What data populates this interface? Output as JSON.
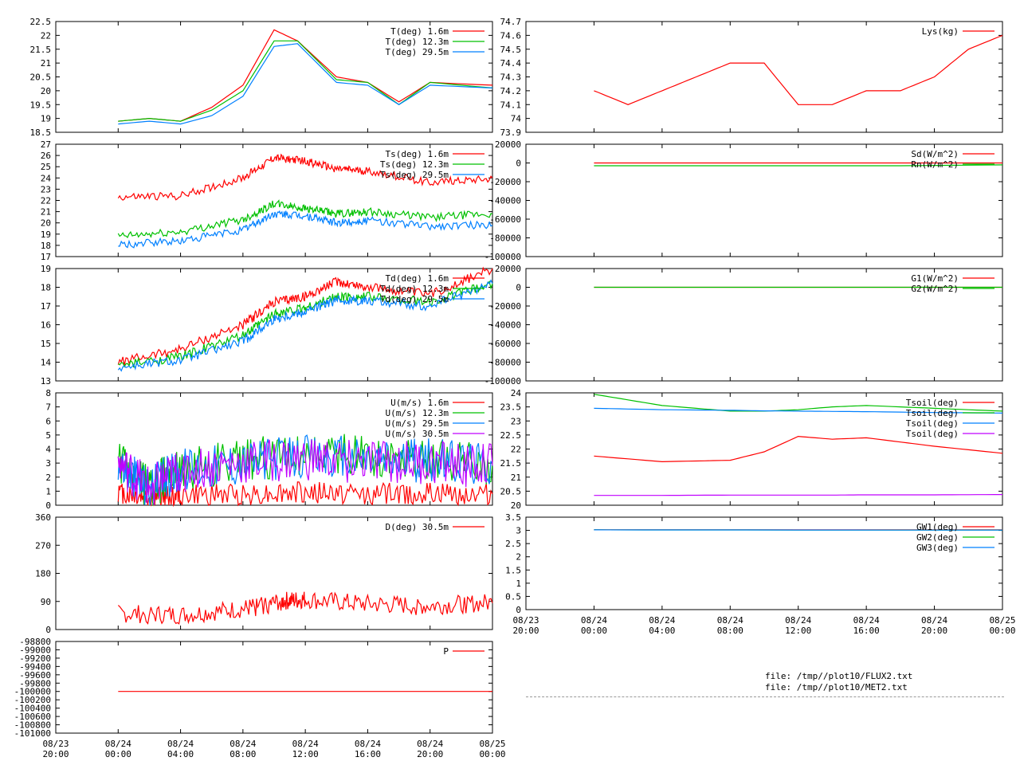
{
  "footer": {
    "file1": "file: /tmp//plot10/FLUX2.txt",
    "file2": "file: /tmp//plot10/MET2.txt"
  },
  "chart_data": [
    {
      "id": "T",
      "type": "line",
      "ylim": [
        18.5,
        22.5
      ],
      "yticks": [
        "22.5",
        "22",
        "21.5",
        "21",
        "20.5",
        "20",
        "19.5",
        "19",
        "18.5"
      ],
      "x": [
        "08/24 00:00",
        "08/24 02:00",
        "08/24 04:00",
        "08/24 06:00",
        "08/24 08:00",
        "08/24 10:00",
        "08/24 11:30",
        "08/24 14:00",
        "08/24 16:00",
        "08/24 18:00",
        "08/24 20:00",
        "08/25 00:00"
      ],
      "legend_placement": "top-right",
      "series": [
        {
          "name": "T(deg)  1.6m",
          "color": "#ff0000",
          "values": [
            18.9,
            19.0,
            18.9,
            19.4,
            20.2,
            22.2,
            21.8,
            20.5,
            20.3,
            19.6,
            20.3,
            20.2
          ]
        },
        {
          "name": "T(deg) 12.3m",
          "color": "#00c000",
          "values": [
            18.9,
            19.0,
            18.9,
            19.3,
            20.0,
            21.8,
            21.8,
            20.4,
            20.3,
            19.5,
            20.3,
            20.1
          ]
        },
        {
          "name": "T(deg) 29.5m",
          "color": "#0080ff",
          "values": [
            18.8,
            18.9,
            18.8,
            19.1,
            19.8,
            21.6,
            21.7,
            20.3,
            20.2,
            19.5,
            20.2,
            20.1
          ]
        }
      ]
    },
    {
      "id": "Ts",
      "type": "line",
      "ylim": [
        17,
        27
      ],
      "yticks": [
        "27",
        "26",
        "25",
        "24",
        "23",
        "22",
        "21",
        "20",
        "19",
        "18",
        "17"
      ],
      "x": [
        "08/24 00:00",
        "08/24 04:00",
        "08/24 08:00",
        "08/24 10:00",
        "08/24 12:00",
        "08/24 14:00",
        "08/24 16:00",
        "08/24 20:00",
        "08/25 00:00"
      ],
      "legend_placement": "top-right",
      "series": [
        {
          "name": "Ts(deg)  1.6m",
          "color": "#ff0000",
          "values": [
            22.3,
            22.4,
            24.0,
            25.8,
            25.5,
            24.8,
            24.6,
            23.6,
            24.0
          ]
        },
        {
          "name": "Ts(deg) 12.3m",
          "color": "#00c000",
          "values": [
            18.8,
            19.2,
            20.3,
            21.7,
            21.3,
            20.8,
            21.0,
            20.5,
            20.8
          ]
        },
        {
          "name": "Ts(deg) 29.5m",
          "color": "#0080ff",
          "values": [
            18.0,
            18.4,
            19.4,
            20.8,
            20.6,
            20.0,
            20.2,
            19.7,
            19.8
          ]
        }
      ]
    },
    {
      "id": "Td",
      "type": "line",
      "ylim": [
        13,
        19
      ],
      "yticks": [
        "19",
        "18",
        "17",
        "16",
        "15",
        "14",
        "13"
      ],
      "x": [
        "08/24 00:00",
        "08/24 04:00",
        "08/24 08:00",
        "08/24 10:00",
        "08/24 12:00",
        "08/24 14:00",
        "08/24 16:00",
        "08/24 20:00",
        "08/25 00:00"
      ],
      "legend_placement": "top-right",
      "series": [
        {
          "name": "Td(deg)  1.6m",
          "color": "#ff0000",
          "values": [
            14.0,
            14.7,
            16.0,
            17.2,
            17.5,
            18.3,
            18.0,
            17.6,
            19.0
          ]
        },
        {
          "name": "Td(deg) 12.3m",
          "color": "#00c000",
          "values": [
            13.8,
            14.3,
            15.4,
            16.6,
            16.9,
            17.5,
            17.5,
            17.2,
            18.2
          ]
        },
        {
          "name": "Td(deg) 29.5m",
          "color": "#0080ff",
          "values": [
            13.7,
            14.1,
            15.1,
            16.3,
            16.7,
            17.3,
            17.3,
            17.0,
            18.2
          ]
        }
      ]
    },
    {
      "id": "U",
      "type": "line",
      "ylim": [
        0,
        8
      ],
      "yticks": [
        "8",
        "7",
        "6",
        "5",
        "4",
        "3",
        "2",
        "1",
        "0"
      ],
      "x": [
        "08/24 00:00",
        "08/24 02:00",
        "08/24 04:00",
        "08/24 08:00",
        "08/24 12:00",
        "08/24 16:00",
        "08/24 20:00",
        "08/25 00:00"
      ],
      "legend_placement": "top-right",
      "series": [
        {
          "name": "U(m/s)  1.6m",
          "color": "#ff0000",
          "values": [
            0.9,
            0.5,
            0.7,
            0.8,
            0.9,
            0.8,
            0.8,
            0.8
          ]
        },
        {
          "name": "U(m/s) 12.3m",
          "color": "#00c000",
          "values": [
            3.0,
            1.2,
            2.6,
            3.2,
            3.6,
            3.4,
            3.2,
            3.0
          ]
        },
        {
          "name": "U(m/s) 29.5m",
          "color": "#0080ff",
          "values": [
            3.0,
            1.2,
            2.6,
            3.1,
            3.5,
            3.3,
            3.2,
            3.0
          ]
        },
        {
          "name": "U(m/s) 30.5m",
          "color": "#c000ff",
          "values": [
            3.0,
            1.2,
            2.5,
            3.0,
            3.3,
            3.1,
            3.0,
            2.8
          ]
        }
      ]
    },
    {
      "id": "D",
      "type": "line",
      "ylim": [
        0,
        360
      ],
      "yticks": [
        "360",
        "270",
        "180",
        "90",
        "0"
      ],
      "x": [
        "08/24 00:00",
        "08/24 04:00",
        "08/24 08:00",
        "08/24 10:30",
        "08/24 12:00",
        "08/24 16:00",
        "08/24 20:00",
        "08/25 00:00"
      ],
      "legend_placement": "top-right",
      "series": [
        {
          "name": "D(deg)  30.5m",
          "color": "#ff0000",
          "values": [
            50,
            45,
            65,
            90,
            95,
            80,
            75,
            85
          ]
        }
      ]
    },
    {
      "id": "P",
      "type": "line",
      "ylim": [
        -101000,
        -98800
      ],
      "yticks": [
        "-101000",
        "-100800",
        "-100600",
        "-100400",
        "-100200",
        "-100000",
        "-99800",
        "-99600",
        "-99400",
        "-99200",
        "-99000",
        "-98800"
      ],
      "x": [
        "08/24 00:00",
        "08/25 00:00"
      ],
      "xticks": [
        "08/23\n20:00",
        "08/24\n00:00",
        "08/24\n04:00",
        "08/24\n08:00",
        "08/24\n12:00",
        "08/24\n16:00",
        "08/24\n20:00",
        "08/25\n00:00"
      ],
      "legend_placement": "top-right",
      "series": [
        {
          "name": "P",
          "color": "#ff0000",
          "values": [
            -100000,
            -100000
          ]
        }
      ]
    },
    {
      "id": "Lys",
      "type": "line",
      "ylim": [
        73.9,
        74.7
      ],
      "yticks": [
        "74.7",
        "74.6",
        "74.5",
        "74.4",
        "74.3",
        "74.2",
        "74.1",
        "74",
        "73.9"
      ],
      "x": [
        "08/24 00:00",
        "08/24 02:00",
        "08/24 04:00",
        "08/24 06:00",
        "08/24 08:00",
        "08/24 10:00",
        "08/24 12:00",
        "08/24 14:00",
        "08/24 16:00",
        "08/24 18:00",
        "08/24 20:00",
        "08/24 22:00",
        "08/25 00:00"
      ],
      "legend_placement": "top-right",
      "series": [
        {
          "name": "Lys(kg)",
          "color": "#ff0000",
          "values": [
            74.2,
            74.1,
            74.2,
            74.3,
            74.4,
            74.4,
            74.1,
            74.1,
            74.2,
            74.2,
            74.3,
            74.5,
            74.6
          ]
        }
      ]
    },
    {
      "id": "Rad",
      "type": "line",
      "ylim": [
        -100000,
        20000
      ],
      "yticks": [
        "20000",
        "0",
        "-20000",
        "-40000",
        "-60000",
        "-80000",
        "-100000"
      ],
      "x": [
        "08/24 00:00",
        "08/24 08:00",
        "08/24 14:00",
        "08/24 18:00",
        "08/25 00:00"
      ],
      "legend_placement": "top-right",
      "series": [
        {
          "name": "Sd(W/m^2)",
          "color": "#ff0000",
          "values": [
            0,
            0,
            0,
            0,
            0
          ]
        },
        {
          "name": "Rn(W/m^2)",
          "color": "#00c000",
          "values": [
            -3000,
            -3000,
            -3000,
            -3000,
            -2000
          ]
        }
      ]
    },
    {
      "id": "G",
      "type": "line",
      "ylim": [
        -100000,
        20000
      ],
      "yticks": [
        "20000",
        "0",
        "-20000",
        "-40000",
        "-60000",
        "-80000",
        "-100000"
      ],
      "x": [
        "08/24 00:00",
        "08/25 00:00"
      ],
      "legend_placement": "top-right",
      "series": [
        {
          "name": "G1(W/m^2)",
          "color": "#ff0000",
          "values": [
            0,
            0
          ]
        },
        {
          "name": "G2(W/m^2)",
          "color": "#00c000",
          "values": [
            0,
            0
          ]
        }
      ]
    },
    {
      "id": "Tsoil",
      "type": "line",
      "ylim": [
        20,
        24
      ],
      "yticks": [
        "24",
        "23.5",
        "23",
        "22.5",
        "22",
        "21.5",
        "21",
        "20.5",
        "20"
      ],
      "x": [
        "08/24 00:00",
        "08/24 04:00",
        "08/24 08:00",
        "08/24 10:00",
        "08/24 12:00",
        "08/24 14:00",
        "08/24 16:00",
        "08/24 20:00",
        "08/25 00:00"
      ],
      "legend_placement": "top-right",
      "series": [
        {
          "name": "Tsoil(deg)",
          "color": "#ff0000",
          "values": [
            21.75,
            21.55,
            21.6,
            21.9,
            22.45,
            22.35,
            22.4,
            22.1,
            21.85
          ]
        },
        {
          "name": "Tsoil(deg)",
          "color": "#00c000",
          "values": [
            23.95,
            23.55,
            23.35,
            23.35,
            23.4,
            23.5,
            23.55,
            23.45,
            23.35
          ]
        },
        {
          "name": "Tsoil(deg)",
          "color": "#0080ff",
          "values": [
            23.45,
            23.4,
            23.38,
            23.36,
            23.35,
            23.34,
            23.33,
            23.3,
            23.28
          ]
        },
        {
          "name": "Tsoil(deg)",
          "color": "#c000ff",
          "values": [
            20.35,
            20.35,
            20.36,
            20.36,
            20.36,
            20.36,
            20.37,
            20.37,
            20.38
          ]
        }
      ]
    },
    {
      "id": "GW",
      "type": "line",
      "ylim": [
        0,
        3.5
      ],
      "yticks": [
        "3.5",
        "3",
        "2.5",
        "2",
        "1.5",
        "1",
        "0.5",
        "0"
      ],
      "x": [
        "08/24 00:00",
        "08/25 00:00"
      ],
      "xticks": [
        "08/23\n20:00",
        "08/24\n00:00",
        "08/24\n04:00",
        "08/24\n08:00",
        "08/24\n12:00",
        "08/24\n16:00",
        "08/24\n20:00",
        "08/25\n00:00"
      ],
      "legend_placement": "top-right",
      "series": [
        {
          "name": "GW1(deg)",
          "color": "#ff0000",
          "values": [
            3.02,
            3.02
          ]
        },
        {
          "name": "GW2(deg)",
          "color": "#00c000",
          "values": [
            3.02,
            3.01
          ]
        },
        {
          "name": "GW3(deg)",
          "color": "#0080ff",
          "values": [
            3.02,
            3.01
          ]
        }
      ]
    }
  ]
}
